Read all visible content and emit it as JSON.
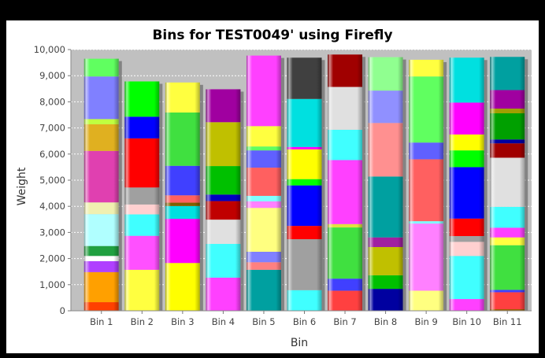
{
  "chart_data": {
    "type": "bar",
    "title": "Bins for TEST0049' using Firefly",
    "xlabel": "Bin",
    "ylabel": "Weight",
    "ylim": [
      0,
      10000
    ],
    "yticks": [
      "0",
      "1,000",
      "2,000",
      "3,000",
      "4,000",
      "5,000",
      "6,000",
      "7,000",
      "8,000",
      "9,000",
      "10,000"
    ],
    "grid": true,
    "legend": "none",
    "colors": {
      "plot_bg": "#c0c0c0",
      "grid": "#ffffff",
      "frame_bg": "#ffffff",
      "outer_bg": "#000000"
    },
    "categories": [
      "Bin 1",
      "Bin 2",
      "Bin 3",
      "Bin 4",
      "Bin 5",
      "Bin 6",
      "Bin 7",
      "Bin 8",
      "Bin 9",
      "Bin 10",
      "Bin 11"
    ],
    "bins": [
      {
        "label": "Bin 1",
        "segments": [
          {
            "v": 330,
            "c": "#ff4000"
          },
          {
            "v": 1150,
            "c": "#ffa000"
          },
          {
            "v": 420,
            "c": "#b040ff"
          },
          {
            "v": 200,
            "c": "#ffffff"
          },
          {
            "v": 380,
            "c": "#20a040"
          },
          {
            "v": 1220,
            "c": "#b0ffff"
          },
          {
            "v": 450,
            "c": "#f0f0b0"
          },
          {
            "v": 1970,
            "c": "#e040b0"
          },
          {
            "v": 1020,
            "c": "#e0b020"
          },
          {
            "v": 200,
            "c": "#c0ff40"
          },
          {
            "v": 1630,
            "c": "#8080ff"
          },
          {
            "v": 680,
            "c": "#60ff60"
          }
        ]
      },
      {
        "label": "Bin 2",
        "segments": [
          {
            "v": 1570,
            "c": "#ffff40"
          },
          {
            "v": 1300,
            "c": "#ff50ff"
          },
          {
            "v": 820,
            "c": "#40ffff"
          },
          {
            "v": 380,
            "c": "#ffd0d0"
          },
          {
            "v": 650,
            "c": "#a0a0a0"
          },
          {
            "v": 1880,
            "c": "#ff0000"
          },
          {
            "v": 830,
            "c": "#0000ff"
          },
          {
            "v": 1350,
            "c": "#00ff00"
          }
        ]
      },
      {
        "label": "Bin 3",
        "segments": [
          {
            "v": 1830,
            "c": "#ffff00"
          },
          {
            "v": 1690,
            "c": "#ff00ff"
          },
          {
            "v": 490,
            "c": "#00e0e0"
          },
          {
            "v": 130,
            "c": "#806000"
          },
          {
            "v": 280,
            "c": "#ff6060"
          },
          {
            "v": 1130,
            "c": "#4040ff"
          },
          {
            "v": 2040,
            "c": "#40e040"
          },
          {
            "v": 1150,
            "c": "#ffff40"
          }
        ]
      },
      {
        "label": "Bin 4",
        "segments": [
          {
            "v": 1270,
            "c": "#ff40ff"
          },
          {
            "v": 1290,
            "c": "#40ffff"
          },
          {
            "v": 930,
            "c": "#e0e0e0"
          },
          {
            "v": 710,
            "c": "#c00000"
          },
          {
            "v": 250,
            "c": "#0000c0"
          },
          {
            "v": 1090,
            "c": "#00c000"
          },
          {
            "v": 1680,
            "c": "#c0c000"
          },
          {
            "v": 1260,
            "c": "#a000a0"
          }
        ]
      },
      {
        "label": "Bin 5",
        "segments": [
          {
            "v": 1570,
            "c": "#00a0a0"
          },
          {
            "v": 290,
            "c": "#ff8080"
          },
          {
            "v": 400,
            "c": "#8080ff"
          },
          {
            "v": 1680,
            "c": "#ffff80"
          },
          {
            "v": 250,
            "c": "#ff80ff"
          },
          {
            "v": 210,
            "c": "#80ffff"
          },
          {
            "v": 1080,
            "c": "#ff6060"
          },
          {
            "v": 660,
            "c": "#6060ff"
          },
          {
            "v": 150,
            "c": "#60ff60"
          },
          {
            "v": 780,
            "c": "#ffff40"
          },
          {
            "v": 2700,
            "c": "#ff40ff"
          }
        ]
      },
      {
        "label": "Bin 6",
        "segments": [
          {
            "v": 790,
            "c": "#40ffff"
          },
          {
            "v": 1950,
            "c": "#a0a0a0"
          },
          {
            "v": 510,
            "c": "#ff0000"
          },
          {
            "v": 1550,
            "c": "#0000ff"
          },
          {
            "v": 240,
            "c": "#00ff00"
          },
          {
            "v": 1140,
            "c": "#ffff00"
          },
          {
            "v": 90,
            "c": "#ff00ff"
          },
          {
            "v": 1840,
            "c": "#00e0e0"
          },
          {
            "v": 1580,
            "c": "#404040"
          }
        ]
      },
      {
        "label": "Bin 7",
        "segments": [
          {
            "v": 770,
            "c": "#ff4040"
          },
          {
            "v": 460,
            "c": "#4040ff"
          },
          {
            "v": 1960,
            "c": "#40e040"
          },
          {
            "v": 130,
            "c": "#e0e040"
          },
          {
            "v": 2450,
            "c": "#ff40ff"
          },
          {
            "v": 1160,
            "c": "#40ffff"
          },
          {
            "v": 1640,
            "c": "#e0e0e0"
          },
          {
            "v": 1240,
            "c": "#a00000"
          }
        ]
      },
      {
        "label": "Bin 8",
        "segments": [
          {
            "v": 840,
            "c": "#0000a0"
          },
          {
            "v": 520,
            "c": "#00c000"
          },
          {
            "v": 1080,
            "c": "#c0c000"
          },
          {
            "v": 370,
            "c": "#a020a0"
          },
          {
            "v": 2330,
            "c": "#00a0a0"
          },
          {
            "v": 2050,
            "c": "#ff9090"
          },
          {
            "v": 1240,
            "c": "#9090ff"
          },
          {
            "v": 1280,
            "c": "#90ff90"
          }
        ]
      },
      {
        "label": "Bin 9",
        "segments": [
          {
            "v": 770,
            "c": "#ffff80"
          },
          {
            "v": 2570,
            "c": "#ff80ff"
          },
          {
            "v": 90,
            "c": "#80ffff"
          },
          {
            "v": 2370,
            "c": "#ff6060"
          },
          {
            "v": 640,
            "c": "#6060ff"
          },
          {
            "v": 2530,
            "c": "#60ff60"
          },
          {
            "v": 640,
            "c": "#ffff40"
          }
        ]
      },
      {
        "label": "Bin 10",
        "segments": [
          {
            "v": 450,
            "c": "#ff40ff"
          },
          {
            "v": 1650,
            "c": "#40ffff"
          },
          {
            "v": 540,
            "c": "#ffd0d0"
          },
          {
            "v": 220,
            "c": "#a0a0a0"
          },
          {
            "v": 670,
            "c": "#ff0000"
          },
          {
            "v": 1970,
            "c": "#0000ff"
          },
          {
            "v": 640,
            "c": "#00ff00"
          },
          {
            "v": 610,
            "c": "#ffff00"
          },
          {
            "v": 1220,
            "c": "#ff00ff"
          },
          {
            "v": 1720,
            "c": "#00e0e0"
          }
        ]
      },
      {
        "label": "Bin 11",
        "segments": [
          {
            "v": 60,
            "c": "#a06000"
          },
          {
            "v": 650,
            "c": "#ff4040"
          },
          {
            "v": 90,
            "c": "#4040ff"
          },
          {
            "v": 1710,
            "c": "#40e040"
          },
          {
            "v": 300,
            "c": "#ffff40"
          },
          {
            "v": 370,
            "c": "#ff40ff"
          },
          {
            "v": 800,
            "c": "#40ffff"
          },
          {
            "v": 1880,
            "c": "#e0e0e0"
          },
          {
            "v": 550,
            "c": "#a00000"
          },
          {
            "v": 150,
            "c": "#0000a0"
          },
          {
            "v": 1000,
            "c": "#00a000"
          },
          {
            "v": 180,
            "c": "#a0a000"
          },
          {
            "v": 710,
            "c": "#a000a0"
          },
          {
            "v": 1270,
            "c": "#00a0a0"
          }
        ]
      }
    ]
  }
}
